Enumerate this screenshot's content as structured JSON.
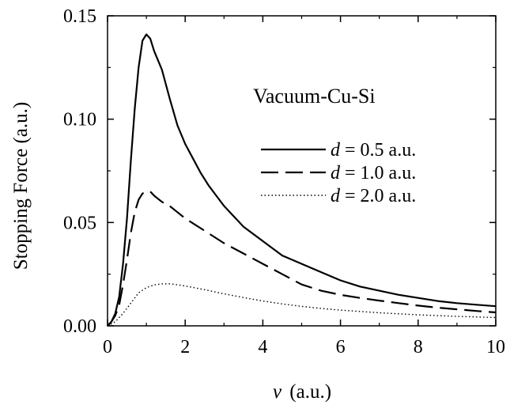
{
  "chart_data": {
    "type": "line",
    "title": "",
    "annotation": "Vacuum-Cu-Si",
    "xlabel": {
      "var": "v",
      "unit": "(a.u.)"
    },
    "ylabel": "Stopping Force (a.u.)",
    "xlim": [
      0,
      10
    ],
    "ylim": [
      0,
      0.15
    ],
    "xticks": [
      0,
      2,
      4,
      6,
      8,
      10
    ],
    "xtick_labels": [
      "0",
      "2",
      "4",
      "6",
      "8",
      "10"
    ],
    "yticks": [
      0.0,
      0.05,
      0.1,
      0.15
    ],
    "ytick_labels": [
      "0.00",
      "0.05",
      "0.10",
      "0.15"
    ],
    "grid": false,
    "legend_position": "upper-right",
    "series": [
      {
        "name": "d = 0.5 a.u.",
        "legend": {
          "var": "d",
          "rest": " = 0.5 a.u."
        },
        "style": "solid",
        "x": [
          0.0,
          0.1,
          0.2,
          0.3,
          0.4,
          0.5,
          0.6,
          0.7,
          0.8,
          0.9,
          1.0,
          1.1,
          1.2,
          1.4,
          1.6,
          1.8,
          2.0,
          2.2,
          2.4,
          2.6,
          2.8,
          3.0,
          3.5,
          4.0,
          4.5,
          5.0,
          5.5,
          6.0,
          6.5,
          7.0,
          7.5,
          8.0,
          8.5,
          9.0,
          9.5,
          10.0
        ],
        "y": [
          0.0,
          0.002,
          0.006,
          0.014,
          0.03,
          0.052,
          0.08,
          0.105,
          0.125,
          0.138,
          0.141,
          0.139,
          0.133,
          0.124,
          0.11,
          0.097,
          0.088,
          0.081,
          0.074,
          0.068,
          0.063,
          0.058,
          0.048,
          0.041,
          0.034,
          0.03,
          0.026,
          0.022,
          0.019,
          0.017,
          0.015,
          0.0135,
          0.012,
          0.011,
          0.0102,
          0.0095
        ]
      },
      {
        "name": "d = 1.0 a.u.",
        "legend": {
          "var": "d",
          "rest": " = 1.0 a.u."
        },
        "style": "dashed",
        "x": [
          0.0,
          0.1,
          0.2,
          0.3,
          0.4,
          0.5,
          0.6,
          0.7,
          0.8,
          0.9,
          1.0,
          1.1,
          1.2,
          1.4,
          1.6,
          1.8,
          2.0,
          2.5,
          3.0,
          3.5,
          4.0,
          4.5,
          5.0,
          5.5,
          6.0,
          6.5,
          7.0,
          7.5,
          8.0,
          8.5,
          9.0,
          9.5,
          10.0
        ],
        "y": [
          0.0,
          0.002,
          0.005,
          0.01,
          0.02,
          0.032,
          0.045,
          0.055,
          0.061,
          0.064,
          0.065,
          0.065,
          0.063,
          0.06,
          0.058,
          0.055,
          0.052,
          0.046,
          0.04,
          0.035,
          0.03,
          0.025,
          0.02,
          0.017,
          0.015,
          0.0135,
          0.0122,
          0.011,
          0.0098,
          0.0088,
          0.008,
          0.0072,
          0.0065
        ]
      },
      {
        "name": "d = 2.0 a.u.",
        "legend": {
          "var": "d",
          "rest": " = 2.0 a.u."
        },
        "style": "dotted",
        "x": [
          0.0,
          0.2,
          0.4,
          0.6,
          0.8,
          1.0,
          1.2,
          1.4,
          1.6,
          1.8,
          2.0,
          2.5,
          3.0,
          3.5,
          4.0,
          4.5,
          5.0,
          5.5,
          6.0,
          7.0,
          8.0,
          9.0,
          10.0
        ],
        "y": [
          0.0,
          0.002,
          0.006,
          0.011,
          0.016,
          0.0185,
          0.0198,
          0.0203,
          0.0203,
          0.0199,
          0.0193,
          0.0175,
          0.0155,
          0.0137,
          0.012,
          0.0106,
          0.0094,
          0.0084,
          0.0076,
          0.0063,
          0.0053,
          0.0046,
          0.004
        ]
      }
    ]
  }
}
